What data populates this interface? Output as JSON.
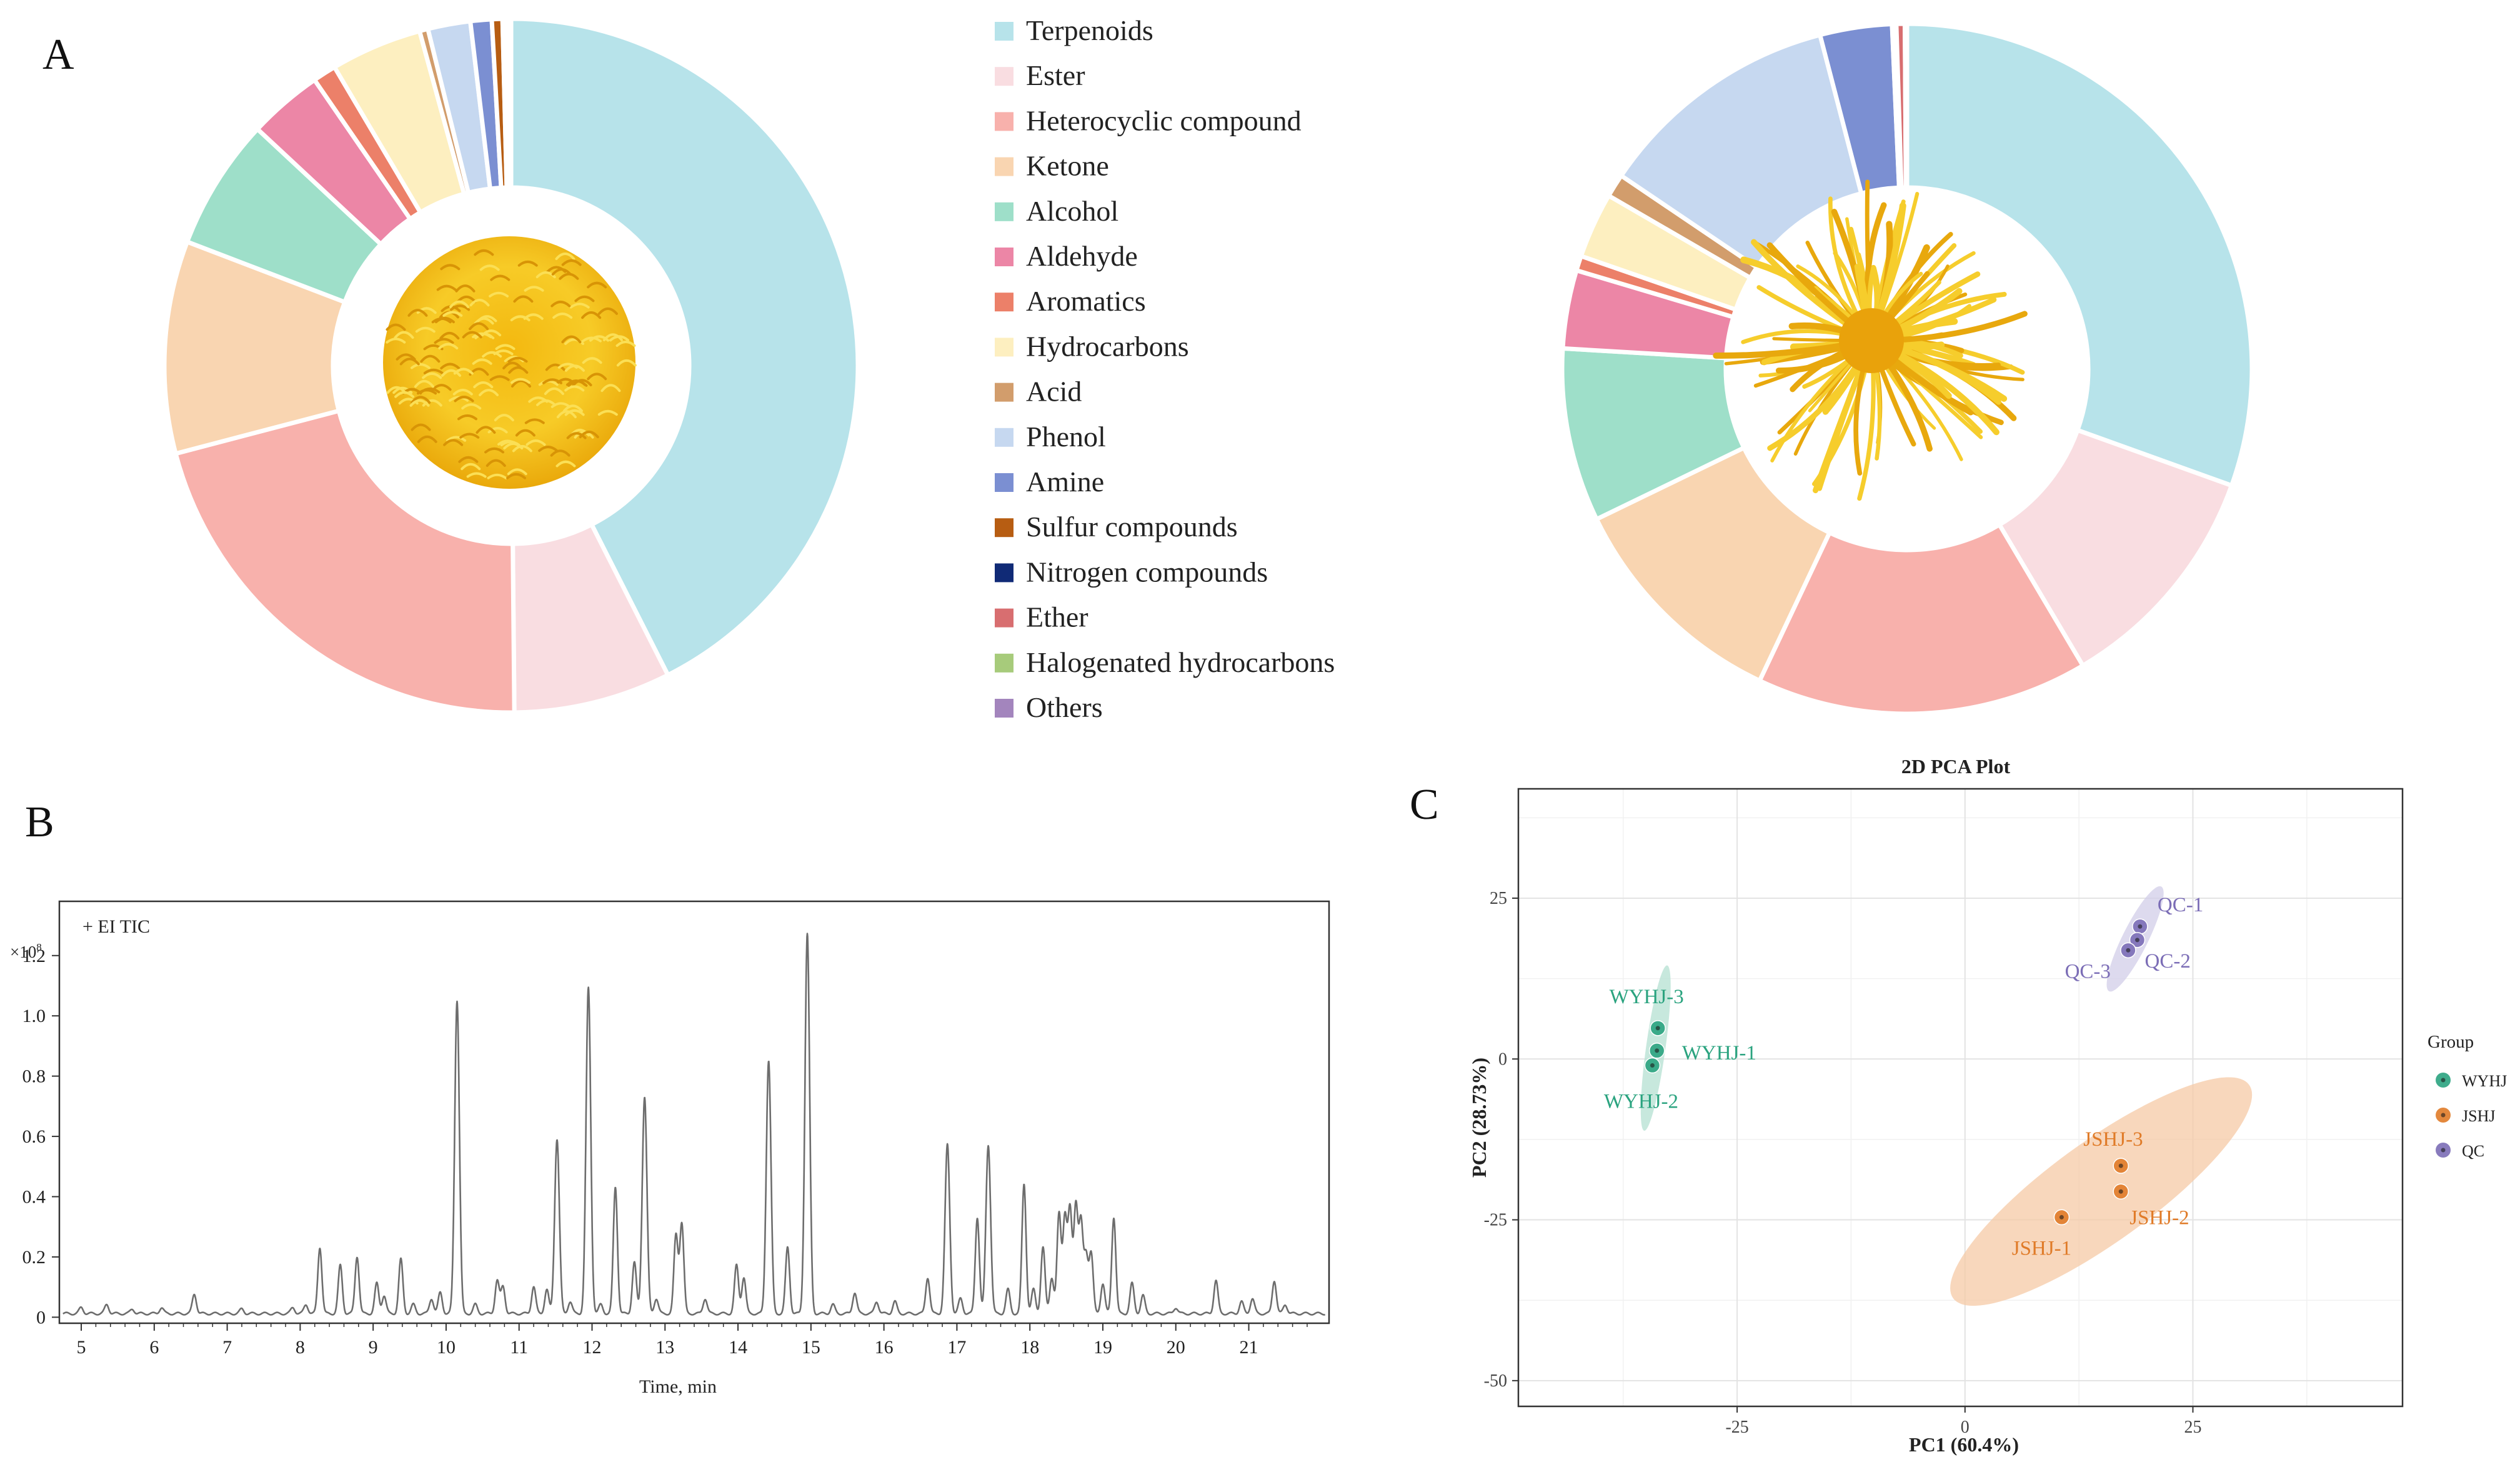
{
  "panels": {
    "a": "A",
    "b": "B",
    "c": "C"
  },
  "legend": {
    "items": [
      {
        "label": "Terpenoids",
        "color": "#b7e3ea"
      },
      {
        "label": "Ester",
        "color": "#f9dde1"
      },
      {
        "label": "Heterocyclic compound",
        "color": "#f8b1ac"
      },
      {
        "label": "Ketone",
        "color": "#f9d5b1"
      },
      {
        "label": "Alcohol",
        "color": "#9edfc9"
      },
      {
        "label": "Aldehyde",
        "color": "#ec86a6"
      },
      {
        "label": "Aromatics",
        "color": "#ec8069"
      },
      {
        "label": "Hydrocarbons",
        "color": "#fdefc0"
      },
      {
        "label": "Acid",
        "color": "#d29d6c"
      },
      {
        "label": "Phenol",
        "color": "#c6d8f0"
      },
      {
        "label": "Amine",
        "color": "#7b8fd2"
      },
      {
        "label": "Sulfur compounds",
        "color": "#b75d12"
      },
      {
        "label": "Nitrogen compounds",
        "color": "#102a76"
      },
      {
        "label": "Ether",
        "color": "#d86e70"
      },
      {
        "label": "Halogenated hydrocarbons",
        "color": "#a7cb7b"
      },
      {
        "label": "Others",
        "color": "#a385bd"
      }
    ]
  },
  "chart_data": [
    {
      "type": "pie",
      "style": "donut",
      "panel": "A",
      "sample": "left",
      "categories": [
        "Terpenoids",
        "Ester",
        "Heterocyclic compound",
        "Ketone",
        "Alcohol",
        "Aldehyde",
        "Aromatics",
        "Hydrocarbons",
        "Acid",
        "Phenol",
        "Amine",
        "Sulfur compounds",
        "Nitrogen compounds",
        "Ether",
        "Halogenated hydrocarbons",
        "Others"
      ],
      "values": [
        43.0,
        7.4,
        21.3,
        10.0,
        6.2,
        3.5,
        1.1,
        4.3,
        0.4,
        2.0,
        1.0,
        0.5,
        0.0,
        0.1,
        0.1,
        0.2
      ],
      "center_image": "yellow pompon chrysanthemum flower"
    },
    {
      "type": "pie",
      "style": "donut",
      "panel": "A",
      "sample": "right",
      "categories": [
        "Terpenoids",
        "Ester",
        "Heterocyclic compound",
        "Ketone",
        "Alcohol",
        "Aldehyde",
        "Aromatics",
        "Hydrocarbons",
        "Acid",
        "Phenol",
        "Amine",
        "Sulfur compounds",
        "Nitrogen compounds",
        "Ether",
        "Halogenated hydrocarbons",
        "Others"
      ],
      "values": [
        30.8,
        11.1,
        15.7,
        10.9,
        8.2,
        3.7,
        0.7,
        3.1,
        1.1,
        11.6,
        3.4,
        0.2,
        0.0,
        0.4,
        0.0,
        0.1
      ],
      "center_image": "yellow spider chrysanthemum flower"
    },
    {
      "type": "line",
      "panel": "B",
      "annotation": "+ EI TIC",
      "y_multiplier": "×10",
      "y_exponent": "8",
      "xlabel": "Time, min",
      "ylabel": "",
      "xlim": [
        4.7,
        22.1
      ],
      "ylim": [
        -0.02,
        1.38
      ],
      "x_ticks": [
        "5",
        "6",
        "7",
        "8",
        "9",
        "10",
        "11",
        "12",
        "13",
        "14",
        "15",
        "16",
        "17",
        "18",
        "19",
        "20",
        "21"
      ],
      "y_ticks": [
        "0",
        "0.2",
        "0.4",
        "0.6",
        "0.8",
        "1.0",
        "1.2"
      ],
      "baseline": 0.012,
      "peaks": [
        [
          5.0,
          0.02
        ],
        [
          5.35,
          0.03
        ],
        [
          5.7,
          0.015
        ],
        [
          6.1,
          0.02
        ],
        [
          6.55,
          0.065
        ],
        [
          7.2,
          0.015
        ],
        [
          7.9,
          0.02
        ],
        [
          8.08,
          0.03
        ],
        [
          8.27,
          0.22
        ],
        [
          8.55,
          0.16
        ],
        [
          8.78,
          0.19
        ],
        [
          9.05,
          0.1
        ],
        [
          9.15,
          0.06
        ],
        [
          9.38,
          0.18
        ],
        [
          9.55,
          0.03
        ],
        [
          9.8,
          0.05
        ],
        [
          9.92,
          0.07
        ],
        [
          10.15,
          1.04
        ],
        [
          10.4,
          0.03
        ],
        [
          10.7,
          0.11
        ],
        [
          10.78,
          0.09
        ],
        [
          11.2,
          0.09
        ],
        [
          11.38,
          0.08
        ],
        [
          11.52,
          0.58
        ],
        [
          11.7,
          0.04
        ],
        [
          11.95,
          1.08
        ],
        [
          12.12,
          0.03
        ],
        [
          12.32,
          0.42
        ],
        [
          12.58,
          0.17
        ],
        [
          12.72,
          0.72
        ],
        [
          12.88,
          0.05
        ],
        [
          13.15,
          0.26
        ],
        [
          13.23,
          0.3
        ],
        [
          13.55,
          0.05
        ],
        [
          13.98,
          0.16
        ],
        [
          14.08,
          0.12
        ],
        [
          14.42,
          0.84
        ],
        [
          14.68,
          0.22
        ],
        [
          14.95,
          1.26
        ],
        [
          15.3,
          0.03
        ],
        [
          15.6,
          0.07
        ],
        [
          15.9,
          0.04
        ],
        [
          16.15,
          0.04
        ],
        [
          16.6,
          0.12
        ],
        [
          16.87,
          0.56
        ],
        [
          17.05,
          0.05
        ],
        [
          17.28,
          0.32
        ],
        [
          17.43,
          0.56
        ],
        [
          17.7,
          0.08
        ],
        [
          17.92,
          0.43
        ],
        [
          18.05,
          0.08
        ],
        [
          18.18,
          0.22
        ],
        [
          18.3,
          0.12
        ],
        [
          18.4,
          0.33
        ],
        [
          18.48,
          0.32
        ],
        [
          18.55,
          0.34
        ],
        [
          18.63,
          0.36
        ],
        [
          18.7,
          0.3
        ],
        [
          18.77,
          0.19
        ],
        [
          18.84,
          0.2
        ],
        [
          19.0,
          0.1
        ],
        [
          19.15,
          0.32
        ],
        [
          19.4,
          0.1
        ],
        [
          19.55,
          0.06
        ],
        [
          20.0,
          0.02
        ],
        [
          20.55,
          0.11
        ],
        [
          20.9,
          0.04
        ],
        [
          21.05,
          0.05
        ],
        [
          21.35,
          0.11
        ],
        [
          21.5,
          0.03
        ]
      ]
    },
    {
      "type": "scatter",
      "panel": "C",
      "title": "2D PCA Plot",
      "xlabel": "PC1 (60.4%)",
      "ylabel": "PC2 (28.73%)",
      "xlim": [
        -49,
        48
      ],
      "ylim": [
        -54,
        42
      ],
      "x_ticks": [
        "-25",
        "0",
        "25"
      ],
      "y_ticks": [
        "-50",
        "-25",
        "0",
        "25"
      ],
      "legend_title": "Group",
      "groups": [
        {
          "name": "WYHJ",
          "color": "#2aa37f",
          "fill": "#b4e0d1"
        },
        {
          "name": "JSHJ",
          "color": "#e07b28",
          "fill": "#f6c9a6"
        },
        {
          "name": "QC",
          "color": "#7b6db6",
          "fill": "#d2cde8"
        }
      ],
      "points": [
        {
          "label": "WYHJ-1",
          "group": "WYHJ",
          "x": -33.8,
          "y": 1.3
        },
        {
          "label": "WYHJ-2",
          "group": "WYHJ",
          "x": -34.3,
          "y": -1.0
        },
        {
          "label": "WYHJ-3",
          "group": "WYHJ",
          "x": -33.7,
          "y": 4.8
        },
        {
          "label": "JSHJ-1",
          "group": "JSHJ",
          "x": 10.6,
          "y": -24.6
        },
        {
          "label": "JSHJ-2",
          "group": "JSHJ",
          "x": 17.1,
          "y": -20.6
        },
        {
          "label": "JSHJ-3",
          "group": "JSHJ",
          "x": 17.1,
          "y": -16.6
        },
        {
          "label": "QC-1",
          "group": "QC",
          "x": 19.2,
          "y": 20.6
        },
        {
          "label": "QC-2",
          "group": "QC",
          "x": 18.9,
          "y": 18.5
        },
        {
          "label": "QC-3",
          "group": "QC",
          "x": 17.9,
          "y": 16.9
        }
      ]
    }
  ]
}
